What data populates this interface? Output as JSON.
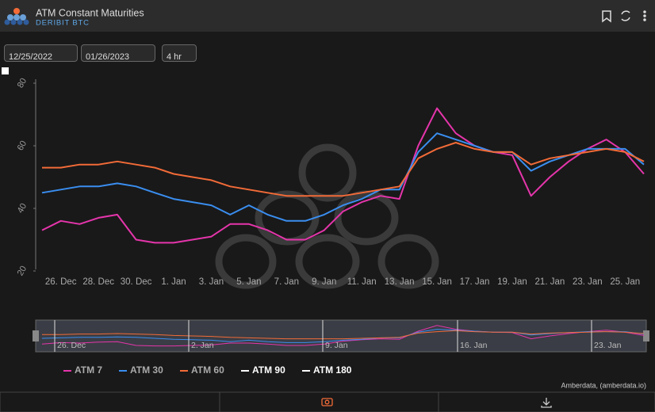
{
  "header": {
    "title": "ATM Constant Maturities",
    "subtitle": "DERIBIT BTC"
  },
  "controls": {
    "start_date": "12/25/2022",
    "end_date": "01/26/2023",
    "interval": "4 hr"
  },
  "credits": "Amberdata, (amberdata.io)",
  "chart_data": {
    "type": "line",
    "x": [
      null,
      "26. Dec",
      null,
      "28. Dec",
      null,
      "30. Dec",
      null,
      "1. Jan",
      null,
      "3. Jan",
      null,
      "5. Jan",
      null,
      "7. Jan",
      null,
      "9. Jan",
      null,
      "11. Jan",
      null,
      "13. Jan",
      null,
      "15. Jan",
      null,
      "17. Jan",
      null,
      "19. Jan",
      null,
      "21. Jan",
      null,
      "23. Jan",
      null,
      "25. Jan",
      null
    ],
    "ylim": [
      20,
      80
    ],
    "yticks": [
      20,
      40,
      60,
      80
    ],
    "grid": false,
    "series": [
      {
        "name": "ATM 7",
        "color": "#e535ab",
        "values": [
          33,
          36,
          35,
          37,
          38,
          30,
          29,
          29,
          30,
          31,
          35,
          35,
          33,
          30,
          30,
          33,
          39,
          42,
          44,
          43,
          60,
          72,
          64,
          60,
          58,
          57,
          44,
          50,
          55,
          59,
          62,
          58,
          51
        ]
      },
      {
        "name": "ATM 30",
        "color": "#3a8ef0",
        "values": [
          45,
          46,
          47,
          47,
          48,
          47,
          45,
          43,
          42,
          41,
          38,
          41,
          38,
          36,
          36,
          38,
          41,
          43,
          46,
          46,
          58,
          64,
          62,
          60,
          58,
          58,
          52,
          55,
          57,
          59,
          59,
          59,
          54
        ]
      },
      {
        "name": "ATM 60",
        "color": "#f26b38",
        "values": [
          53,
          53,
          54,
          54,
          55,
          54,
          53,
          51,
          50,
          49,
          47,
          46,
          45,
          44,
          44,
          44,
          44,
          45,
          46,
          47,
          56,
          59,
          61,
          59,
          58,
          58,
          54,
          56,
          57,
          58,
          59,
          58,
          55
        ]
      },
      {
        "name": "ATM 90",
        "color": "#ffffff",
        "visible": false,
        "values": [
          null,
          null,
          null,
          null,
          null,
          null,
          null,
          null,
          null,
          null,
          null,
          null,
          null,
          null,
          null,
          null,
          null,
          null,
          null,
          null,
          null,
          null,
          null,
          null,
          null,
          null,
          null,
          null,
          null,
          null,
          null,
          null,
          null
        ]
      },
      {
        "name": "ATM 180",
        "color": "#ffffff",
        "visible": false,
        "values": [
          null,
          null,
          null,
          null,
          null,
          null,
          null,
          null,
          null,
          null,
          null,
          null,
          null,
          null,
          null,
          null,
          null,
          null,
          null,
          null,
          null,
          null,
          null,
          null,
          null,
          null,
          null,
          null,
          null,
          null,
          null,
          null,
          null
        ]
      }
    ],
    "navigator_labels": [
      "26. Dec",
      "2. Jan",
      "9. Jan",
      "16. Jan",
      "23. Jan"
    ]
  }
}
